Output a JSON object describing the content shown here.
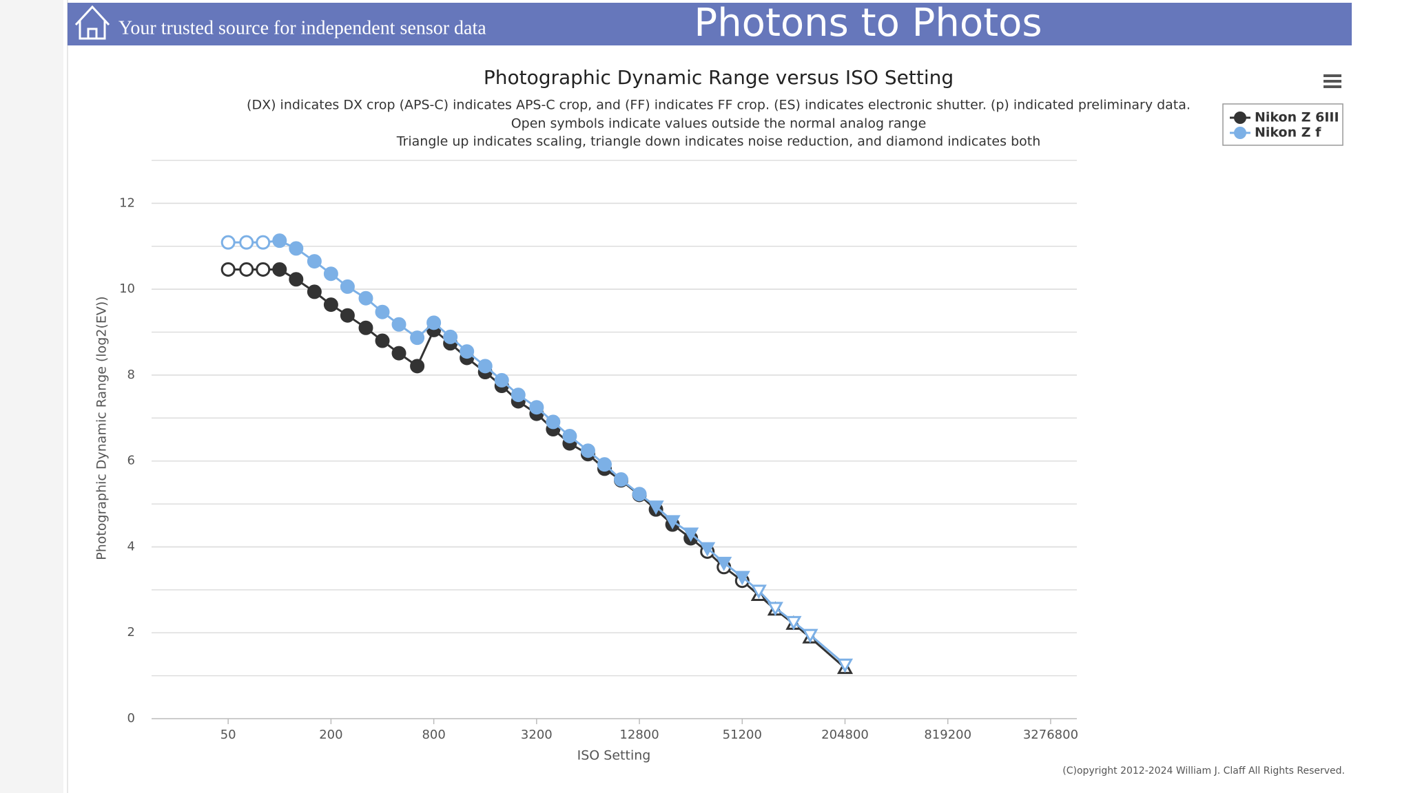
{
  "header": {
    "tagline": "Your trusted source for independent sensor data",
    "brand": "Photons to Photos"
  },
  "footer": {
    "copyright": "(C)opyright 2012-2024 William J. Claff All Rights Reserved."
  },
  "chart_data": {
    "type": "line",
    "title": "Photographic Dynamic Range versus ISO Setting",
    "subtitle": [
      "(DX) indicates DX crop (APS-C) indicates APS-C crop, and (FF) indicates FF crop. (ES) indicates electronic shutter. (p) indicated preliminary data.",
      "Open symbols indicate values outside the normal analog range",
      "Triangle up indicates scaling, triangle down indicates noise reduction, and diamond indicates both"
    ],
    "x_label": "ISO Setting",
    "y_label": "Photographic Dynamic Range (log2(EV))",
    "x": [
      50,
      64,
      80,
      100,
      125,
      160,
      200,
      250,
      320,
      400,
      500,
      640,
      800,
      1000,
      1250,
      1600,
      2000,
      2500,
      3200,
      4000,
      5000,
      6400,
      8000,
      10000,
      12800,
      16000,
      20000,
      25600,
      32000,
      40000,
      51200,
      64000,
      80000,
      102400,
      128000,
      204800
    ],
    "x_log": true,
    "xlim": [
      17.8,
      4666000
    ],
    "xticks": [
      50,
      200,
      800,
      3200,
      12800,
      51200,
      204800,
      819200,
      3276800
    ],
    "ylim": [
      0,
      13
    ],
    "yticks": [
      0,
      2,
      4,
      6,
      8,
      10,
      12
    ],
    "ygrid": [
      1,
      2,
      3,
      4,
      5,
      6,
      7,
      8,
      9,
      10,
      11,
      12,
      13
    ],
    "legend": "top-right",
    "series": [
      {
        "name": "Nikon Z 6III",
        "color": "#333333",
        "values": [
          10.46,
          10.46,
          10.46,
          10.46,
          10.23,
          9.94,
          9.64,
          9.39,
          9.1,
          8.8,
          8.51,
          8.21,
          9.05,
          8.74,
          8.4,
          8.07,
          7.75,
          7.39,
          7.1,
          6.74,
          6.41,
          6.16,
          5.82,
          5.55,
          5.21,
          4.87,
          4.52,
          4.2,
          3.89,
          3.53,
          3.21,
          2.88,
          2.54,
          2.21,
          1.89,
          1.18
        ],
        "markers": [
          "circle-open",
          "circle-open",
          "circle-open",
          "circle",
          "circle",
          "circle",
          "circle",
          "circle",
          "circle",
          "circle",
          "circle",
          "circle",
          "circle",
          "circle",
          "circle",
          "circle",
          "circle",
          "circle",
          "circle",
          "circle",
          "circle",
          "circle",
          "circle",
          "circle",
          "circle",
          "circle",
          "circle",
          "circle",
          "circle-open",
          "circle-open",
          "circle-open",
          "triangle-up-open",
          "triangle-up-open",
          "triangle-up-open",
          "triangle-up-open",
          "triangle-up-open"
        ]
      },
      {
        "name": "Nikon Z f",
        "color": "#7cb0e6",
        "values": [
          11.09,
          11.09,
          11.09,
          11.13,
          10.95,
          10.65,
          10.36,
          10.06,
          9.79,
          9.47,
          9.18,
          8.87,
          9.22,
          8.89,
          8.55,
          8.21,
          7.88,
          7.54,
          7.25,
          6.91,
          6.58,
          6.24,
          5.92,
          5.57,
          5.23,
          4.94,
          4.6,
          4.31,
          3.97,
          3.63,
          3.3,
          2.98,
          2.58,
          2.25,
          1.95,
          1.26
        ],
        "markers": [
          "circle-open",
          "circle-open",
          "circle-open",
          "circle",
          "circle",
          "circle",
          "circle",
          "circle",
          "circle",
          "circle",
          "circle",
          "circle",
          "circle",
          "circle",
          "circle",
          "circle",
          "circle",
          "circle",
          "circle",
          "circle",
          "circle",
          "circle",
          "circle",
          "circle",
          "circle",
          "triangle-down",
          "triangle-down",
          "triangle-down",
          "triangle-down",
          "triangle-down",
          "triangle-down",
          "triangle-down-open",
          "triangle-down-open",
          "triangle-down-open",
          "triangle-down-open",
          "triangle-down-open"
        ]
      }
    ]
  }
}
